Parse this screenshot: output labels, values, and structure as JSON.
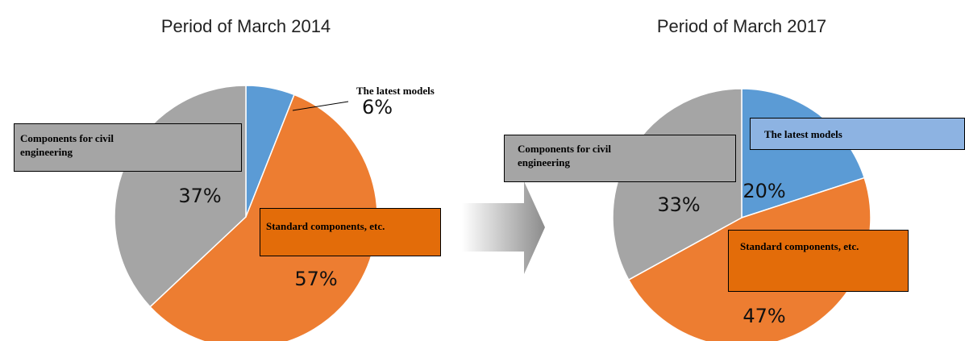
{
  "chart_data": [
    {
      "type": "pie",
      "title": "Period of March 2014",
      "categories": [
        "The latest models",
        "Standard components, etc.",
        "Components for civil engineering"
      ],
      "values": [
        6,
        57,
        37
      ],
      "value_labels": [
        "6%",
        "57%",
        "37%"
      ],
      "colors": [
        "#5b9bd5",
        "#ed7d31",
        "#a5a5a5"
      ]
    },
    {
      "type": "pie",
      "title": "Period of March 2017",
      "categories": [
        "The latest models",
        "Standard components, etc.",
        "Components for civil engineering"
      ],
      "values": [
        20,
        47,
        33
      ],
      "value_labels": [
        "20%",
        "47%",
        "33%"
      ],
      "colors": [
        "#5b9bd5",
        "#ed7d31",
        "#a5a5a5"
      ]
    }
  ]
}
